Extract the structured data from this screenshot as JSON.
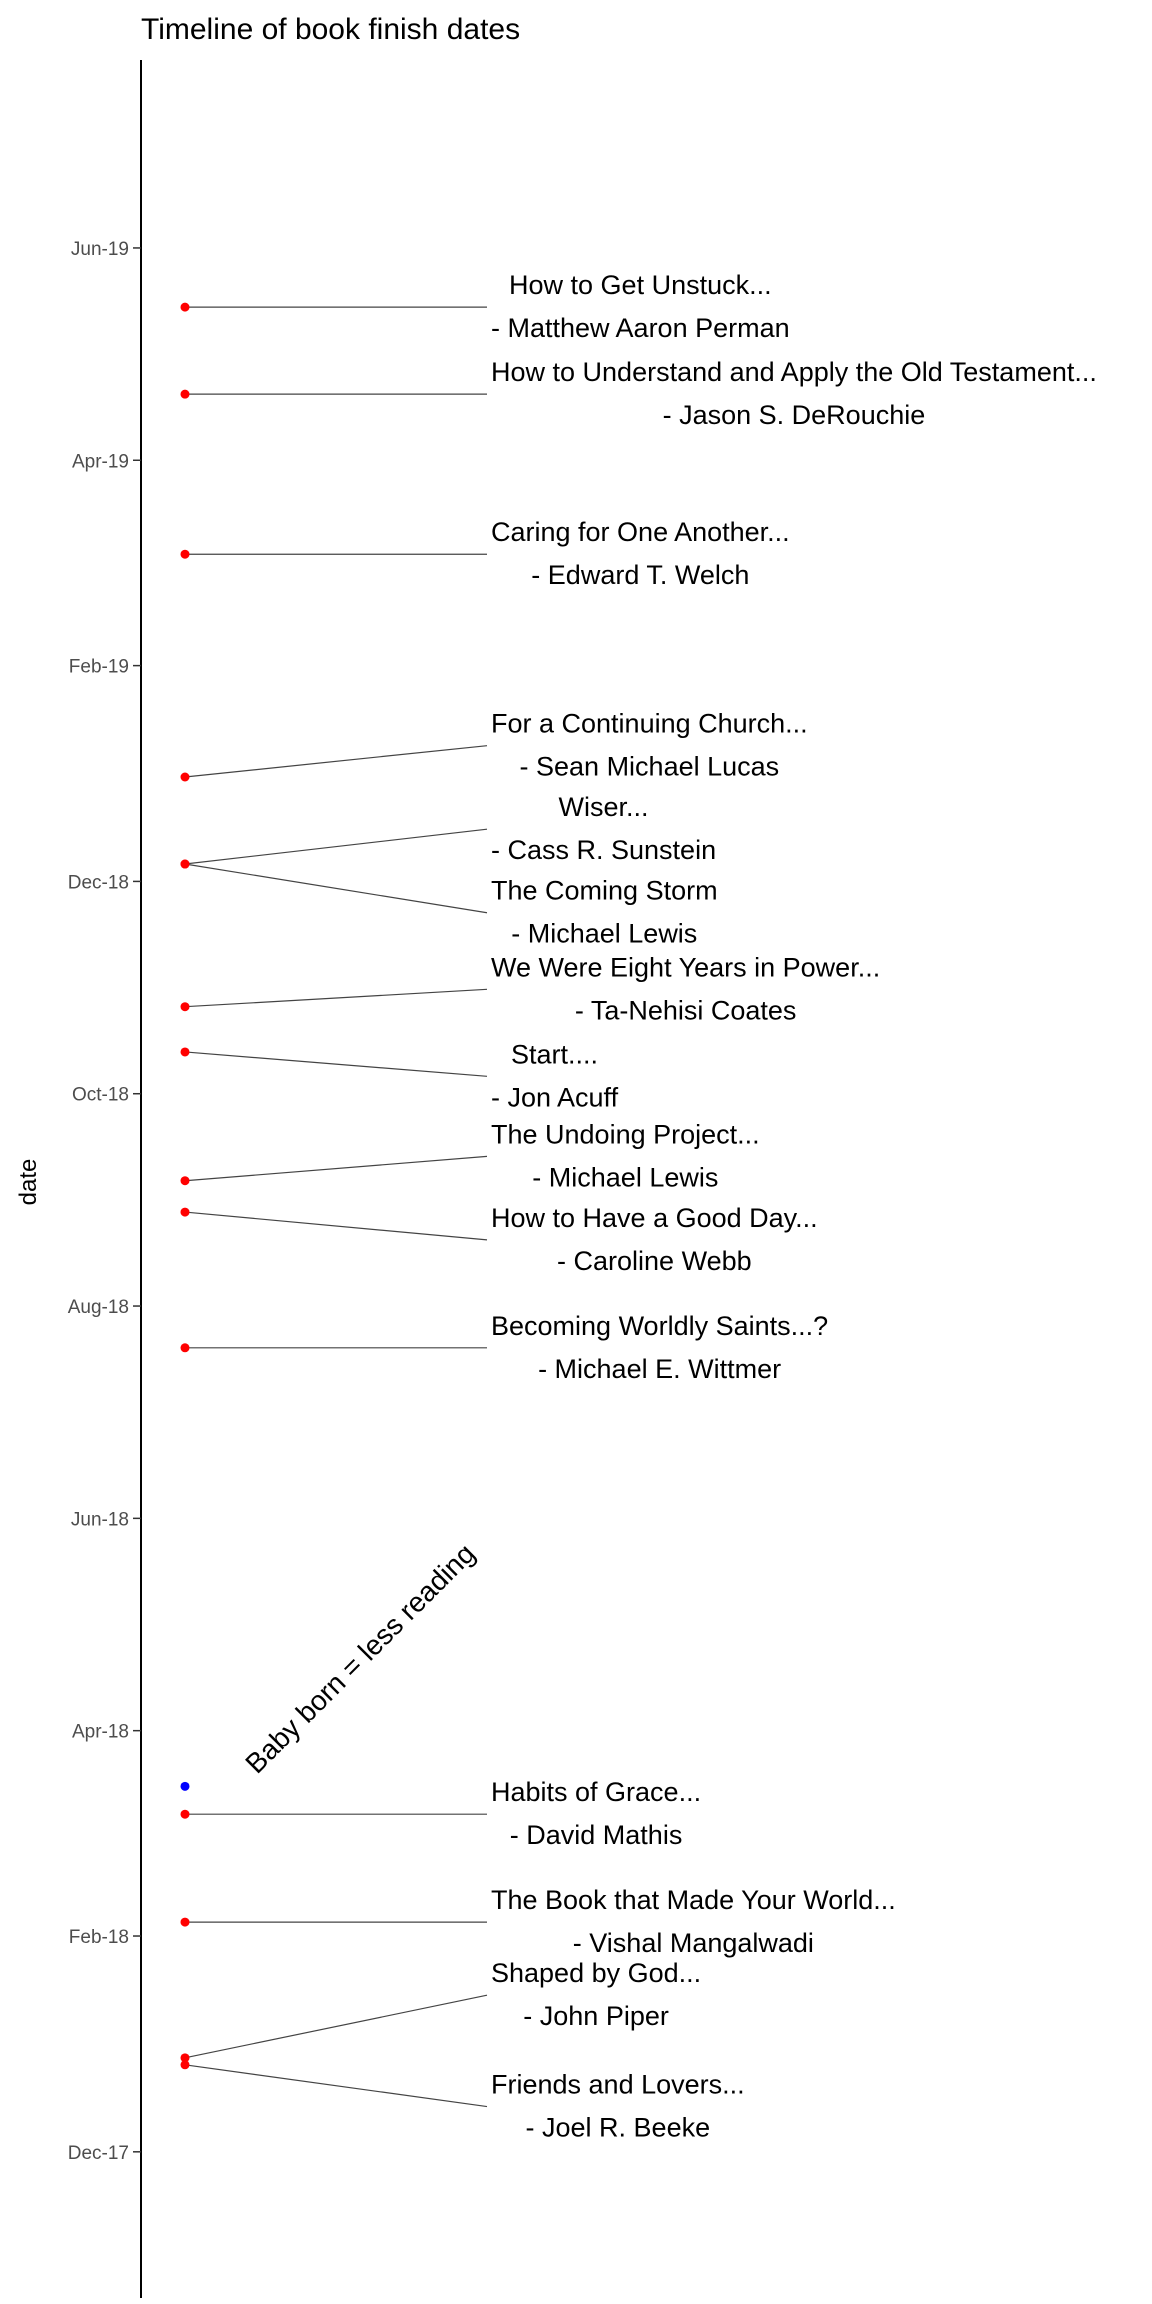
{
  "chart_data": {
    "type": "scatter",
    "title": "Timeline of book finish dates",
    "ylabel": "date",
    "y_axis_type": "date",
    "y_range": [
      "2017-10-20",
      "2019-07-25"
    ],
    "y_ticks": [
      {
        "date": "2017-12-01",
        "label": "Dec-17"
      },
      {
        "date": "2018-02-01",
        "label": "Feb-18"
      },
      {
        "date": "2018-04-01",
        "label": "Apr-18"
      },
      {
        "date": "2018-06-01",
        "label": "Jun-18"
      },
      {
        "date": "2018-08-01",
        "label": "Aug-18"
      },
      {
        "date": "2018-10-01",
        "label": "Oct-18"
      },
      {
        "date": "2018-12-01",
        "label": "Dec-18"
      },
      {
        "date": "2019-02-01",
        "label": "Feb-19"
      },
      {
        "date": "2019-04-01",
        "label": "Apr-19"
      },
      {
        "date": "2019-06-01",
        "label": "Jun-19"
      }
    ],
    "grid": false,
    "point_color": "#ff0000",
    "annotation_point_color": "#0000ff",
    "books": [
      {
        "date": "2019-05-15",
        "title": "How to Get Unstuck...",
        "author": "- Matthew Aaron Perman",
        "label_date": "2019-05-15",
        "title_align": "start"
      },
      {
        "date": "2019-04-20",
        "title": "How to Understand and Apply the Old Testament...",
        "author": "- Jason S. DeRouchie",
        "label_date": "2019-04-20",
        "title_align": "start"
      },
      {
        "date": "2019-03-05",
        "title": "Caring for One Another...",
        "author": "- Edward T. Welch",
        "label_date": "2019-03-05",
        "title_align": "start"
      },
      {
        "date": "2018-12-31",
        "title": "For a Continuing Church...",
        "author": "- Sean Michael Lucas",
        "label_date": "2019-01-09",
        "title_align": "start"
      },
      {
        "date": "2018-12-06",
        "title": "Wiser...",
        "author": "- Cass R. Sunstein",
        "label_date": "2018-12-16",
        "title_align": "middle"
      },
      {
        "date": "2018-12-06",
        "title": "The Coming Storm",
        "author": "- Michael Lewis",
        "label_date": "2018-11-22",
        "title_align": "start"
      },
      {
        "date": "2018-10-26",
        "title": "We Were Eight Years in Power...",
        "author": "- Ta-Nehisi Coates",
        "label_date": "2018-10-31",
        "title_align": "start"
      },
      {
        "date": "2018-10-13",
        "title": "Start....",
        "author": "- Jon Acuff",
        "label_date": "2018-10-06",
        "title_align": "middle"
      },
      {
        "date": "2018-09-06",
        "title": "The Undoing Project...",
        "author": "- Michael Lewis",
        "label_date": "2018-09-13",
        "title_align": "start"
      },
      {
        "date": "2018-08-28",
        "title": "How to Have a Good Day...",
        "author": "- Caroline Webb",
        "label_date": "2018-08-20",
        "title_align": "start"
      },
      {
        "date": "2018-07-20",
        "title": "Becoming Worldly Saints...?",
        "author": "- Michael E. Wittmer",
        "label_date": "2018-07-20",
        "title_align": "start"
      },
      {
        "date": "2018-03-08",
        "title": "Habits of Grace...",
        "author": "- David Mathis",
        "label_date": "2018-03-08",
        "title_align": "start"
      },
      {
        "date": "2018-02-05",
        "title": "The Book that Made Your World...",
        "author": "- Vishal Mangalwadi",
        "label_date": "2018-02-05",
        "title_align": "start"
      },
      {
        "date": "2017-12-28",
        "title": "Shaped by God...",
        "author": "- John Piper",
        "label_date": "2018-01-15",
        "title_align": "start"
      },
      {
        "date": "2017-12-26",
        "title": "Friends and Lovers...",
        "author": "- Joel R. Beeke",
        "label_date": "2017-12-14",
        "title_align": "start"
      }
    ],
    "annotation": {
      "date": "2018-03-16",
      "text": "Baby born = less reading"
    }
  }
}
